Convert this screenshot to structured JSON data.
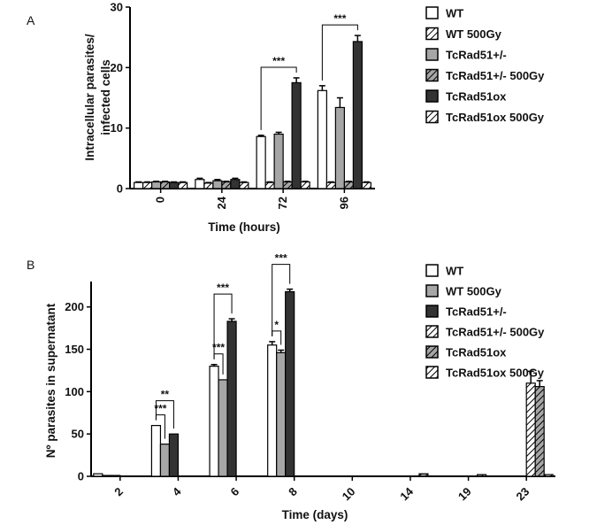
{
  "chart_data": [
    {
      "type": "bar",
      "panel_label": "A",
      "xlabel": "Time (hours)",
      "ylabel_lines": [
        "Intracellular parasites/",
        "infected cells"
      ],
      "ylim": [
        0,
        30
      ],
      "yticks": [
        0,
        10,
        20,
        30
      ],
      "categories": [
        "0",
        "24",
        "72",
        "96"
      ],
      "series": [
        {
          "name": "WT",
          "style": "white",
          "values": [
            1.0,
            1.5,
            8.6,
            16.2
          ],
          "errors": [
            0.1,
            0.2,
            0.2,
            0.8
          ]
        },
        {
          "name": "WT 500Gy",
          "style": "hatch-white",
          "values": [
            1.0,
            0.9,
            1.0,
            1.0
          ],
          "errors": [
            0.1,
            0.1,
            0.1,
            0.1
          ]
        },
        {
          "name": "TcRad51+/-",
          "style": "gray",
          "values": [
            1.1,
            1.3,
            9.0,
            13.4
          ],
          "errors": [
            0.1,
            0.2,
            0.3,
            1.6
          ]
        },
        {
          "name": "TcRad51+/- 500Gy",
          "style": "hatch-gray",
          "values": [
            1.1,
            1.1,
            1.1,
            1.1
          ],
          "errors": [
            0.1,
            0.1,
            0.1,
            0.1
          ]
        },
        {
          "name": "TcRad51ox",
          "style": "dark",
          "values": [
            1.0,
            1.5,
            17.5,
            24.3
          ],
          "errors": [
            0.1,
            0.2,
            0.8,
            1.0
          ]
        },
        {
          "name": "TcRad51ox 500Gy",
          "style": "hatch-white",
          "values": [
            1.0,
            1.0,
            1.1,
            1.0
          ],
          "errors": [
            0.1,
            0.1,
            0.1,
            0.1
          ]
        }
      ],
      "significance": [
        {
          "category": "72",
          "from_series": 0,
          "to_series": 4,
          "label": "***"
        },
        {
          "category": "96",
          "from_series": 0,
          "to_series": 4,
          "label": "***"
        }
      ],
      "legend_position": "right"
    },
    {
      "type": "bar",
      "panel_label": "B",
      "xlabel": "Time (days)",
      "ylabel": "Nº parasites in supernatant",
      "ylim": [
        0,
        230
      ],
      "yticks": [
        0,
        50,
        100,
        150,
        200
      ],
      "categories": [
        "2",
        "4",
        "6",
        "8",
        "10",
        "14",
        "19",
        "23"
      ],
      "series": [
        {
          "name": "WT",
          "style": "white",
          "values": [
            3,
            60,
            130,
            155,
            0,
            0,
            0,
            0
          ],
          "errors": [
            0,
            0,
            2,
            4,
            0,
            0,
            0,
            0
          ]
        },
        {
          "name": "WT 500Gy",
          "style": "gray",
          "values": [
            1,
            38,
            114,
            146,
            0,
            0,
            0,
            0
          ],
          "errors": [
            0,
            0,
            0,
            3,
            0,
            0,
            0,
            0
          ]
        },
        {
          "name": "TcRad51+/-",
          "style": "dark",
          "values": [
            1,
            50,
            183,
            218,
            0,
            0,
            0,
            0
          ],
          "errors": [
            0,
            0,
            3,
            3,
            0,
            0,
            0,
            0
          ]
        },
        {
          "name": "TcRad51+/- 500Gy",
          "style": "hatch-white",
          "values": [
            0,
            0,
            0,
            0,
            0,
            0,
            0,
            110
          ],
          "errors": [
            0,
            0,
            0,
            0,
            0,
            0,
            0,
            14
          ]
        },
        {
          "name": "TcRad51ox",
          "style": "hatch-gray",
          "values": [
            0,
            0,
            0,
            0,
            0,
            3,
            2,
            106
          ],
          "errors": [
            0,
            0,
            0,
            0,
            0,
            0,
            0,
            7
          ]
        },
        {
          "name": "TcRad51ox 500Gy",
          "style": "hatch-white",
          "values": [
            0,
            0,
            0,
            0,
            0,
            0,
            0,
            2
          ],
          "errors": [
            0,
            0,
            0,
            0,
            0,
            0,
            0,
            0
          ]
        }
      ],
      "significance": [
        {
          "category": "4",
          "from_series": 0,
          "to_series": 1,
          "label": "***"
        },
        {
          "category": "4",
          "from_series": 0,
          "to_series": 2,
          "label": "**"
        },
        {
          "category": "6",
          "from_series": 0,
          "to_series": 1,
          "label": "***"
        },
        {
          "category": "6",
          "from_series": 0,
          "to_series": 2,
          "label": "***"
        },
        {
          "category": "8",
          "from_series": 0,
          "to_series": 1,
          "label": "*"
        },
        {
          "category": "8",
          "from_series": 0,
          "to_series": 2,
          "label": "***"
        }
      ],
      "legend_position": "right"
    }
  ],
  "colors": {
    "white": "#ffffff",
    "gray": "#a6a6a6",
    "dark": "#333333",
    "stroke": "#000000"
  }
}
